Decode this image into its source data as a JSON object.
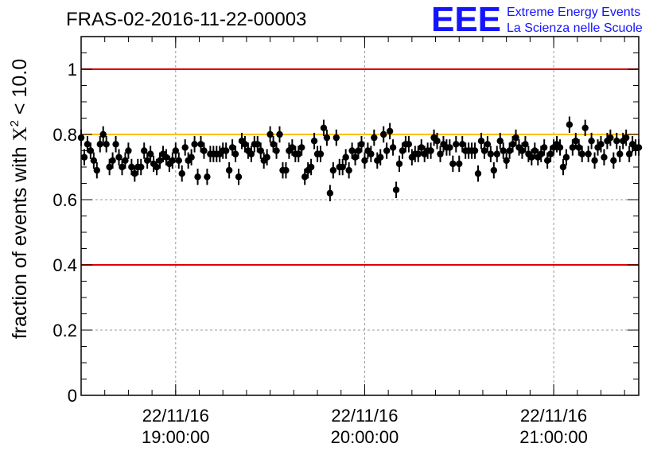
{
  "header": {
    "title": "FRAS-02-2016-11-22-00003",
    "logo_text": "EEE",
    "logo_line1": "Extreme Energy Events",
    "logo_line2": "La Scienza nelle Scuole"
  },
  "colors": {
    "logo": "#1414ff",
    "limit_line": "#e00000",
    "reference_line": "#ffbf00",
    "marker": "#000000",
    "grid": "#999999"
  },
  "chart_data": {
    "type": "scatter",
    "title": "FRAS-02-2016-11-22-00003",
    "ylabel_prefix": "fraction of events with ",
    "ylabel_symbol": "X",
    "ylabel_sup": "2",
    "ylabel_suffix": " < 10.0",
    "xlabel": "",
    "ylim": [
      0,
      1.1
    ],
    "y_ticks": [
      0,
      0.2,
      0.4,
      0.6,
      0.8,
      1
    ],
    "y_tick_labels": [
      "0",
      "0.2",
      "0.4",
      "0.6",
      "0.8",
      "1"
    ],
    "xlim": [
      "2016-11-22 18:30:00",
      "2016-11-22 21:27:00"
    ],
    "x_major_ticks": [
      {
        "time": "2016-11-22 19:00:00",
        "date_label": "22/11/16",
        "time_label": "19:00:00"
      },
      {
        "time": "2016-11-22 20:00:00",
        "date_label": "22/11/16",
        "time_label": "20:00:00"
      },
      {
        "time": "2016-11-22 21:00:00",
        "date_label": "22/11/16",
        "time_label": "21:00:00"
      }
    ],
    "x_minor_tick_interval_minutes": 7.5,
    "grid": true,
    "horizontal_lines": [
      {
        "y": 1.0,
        "color": "#e00000"
      },
      {
        "y": 0.8,
        "color": "#ffbf00"
      },
      {
        "y": 0.4,
        "color": "#e00000"
      }
    ],
    "series": [
      {
        "x_start": "2016-11-22 18:30:00",
        "x_step_minutes": 1,
        "error": 0.025,
        "values": [
          0.79,
          0.73,
          0.77,
          0.75,
          0.72,
          0.69,
          0.77,
          0.8,
          0.77,
          0.7,
          0.72,
          0.77,
          0.73,
          0.7,
          0.72,
          0.75,
          0.7,
          0.68,
          0.7,
          0.7,
          0.75,
          0.72,
          0.74,
          0.71,
          0.7,
          0.72,
          0.74,
          0.73,
          0.71,
          0.72,
          0.75,
          0.72,
          0.68,
          0.76,
          0.72,
          0.73,
          0.77,
          0.67,
          0.77,
          0.75,
          0.67,
          0.74,
          0.74,
          0.74,
          0.74,
          0.75,
          0.75,
          0.69,
          0.76,
          0.74,
          0.67,
          0.78,
          0.77,
          0.75,
          0.74,
          0.77,
          0.77,
          0.75,
          0.72,
          0.73,
          0.8,
          0.77,
          0.75,
          0.8,
          0.69,
          0.69,
          0.75,
          0.76,
          0.74,
          0.74,
          0.76,
          0.67,
          0.69,
          0.7,
          0.78,
          0.74,
          0.74,
          0.82,
          0.79,
          0.62,
          0.69,
          0.79,
          0.7,
          0.7,
          0.73,
          0.69,
          0.75,
          0.73,
          0.75,
          0.77,
          0.72,
          0.75,
          0.74,
          0.79,
          0.72,
          0.73,
          0.8,
          0.75,
          0.81,
          0.76,
          0.63,
          0.71,
          0.75,
          0.77,
          0.77,
          0.73,
          0.74,
          0.74,
          0.76,
          0.74,
          0.75,
          0.75,
          0.79,
          0.78,
          0.74,
          0.77,
          0.76,
          0.76,
          0.71,
          0.77,
          0.71,
          0.77,
          0.75,
          0.75,
          0.75,
          0.75,
          0.68,
          0.78,
          0.75,
          0.77,
          0.74,
          0.69,
          0.74,
          0.78,
          0.75,
          0.72,
          0.75,
          0.77,
          0.79,
          0.76,
          0.75,
          0.77,
          0.74,
          0.73,
          0.75,
          0.73,
          0.74,
          0.76,
          0.72,
          0.74,
          0.76,
          0.77,
          0.76,
          0.7,
          0.73,
          0.83,
          0.76,
          0.78,
          0.76,
          0.74,
          0.82,
          0.74,
          0.78,
          0.72,
          0.76,
          0.77,
          0.73,
          0.78,
          0.79,
          0.72,
          0.78,
          0.74,
          0.78,
          0.79,
          0.74,
          0.77,
          0.76,
          0.76
        ]
      }
    ]
  }
}
